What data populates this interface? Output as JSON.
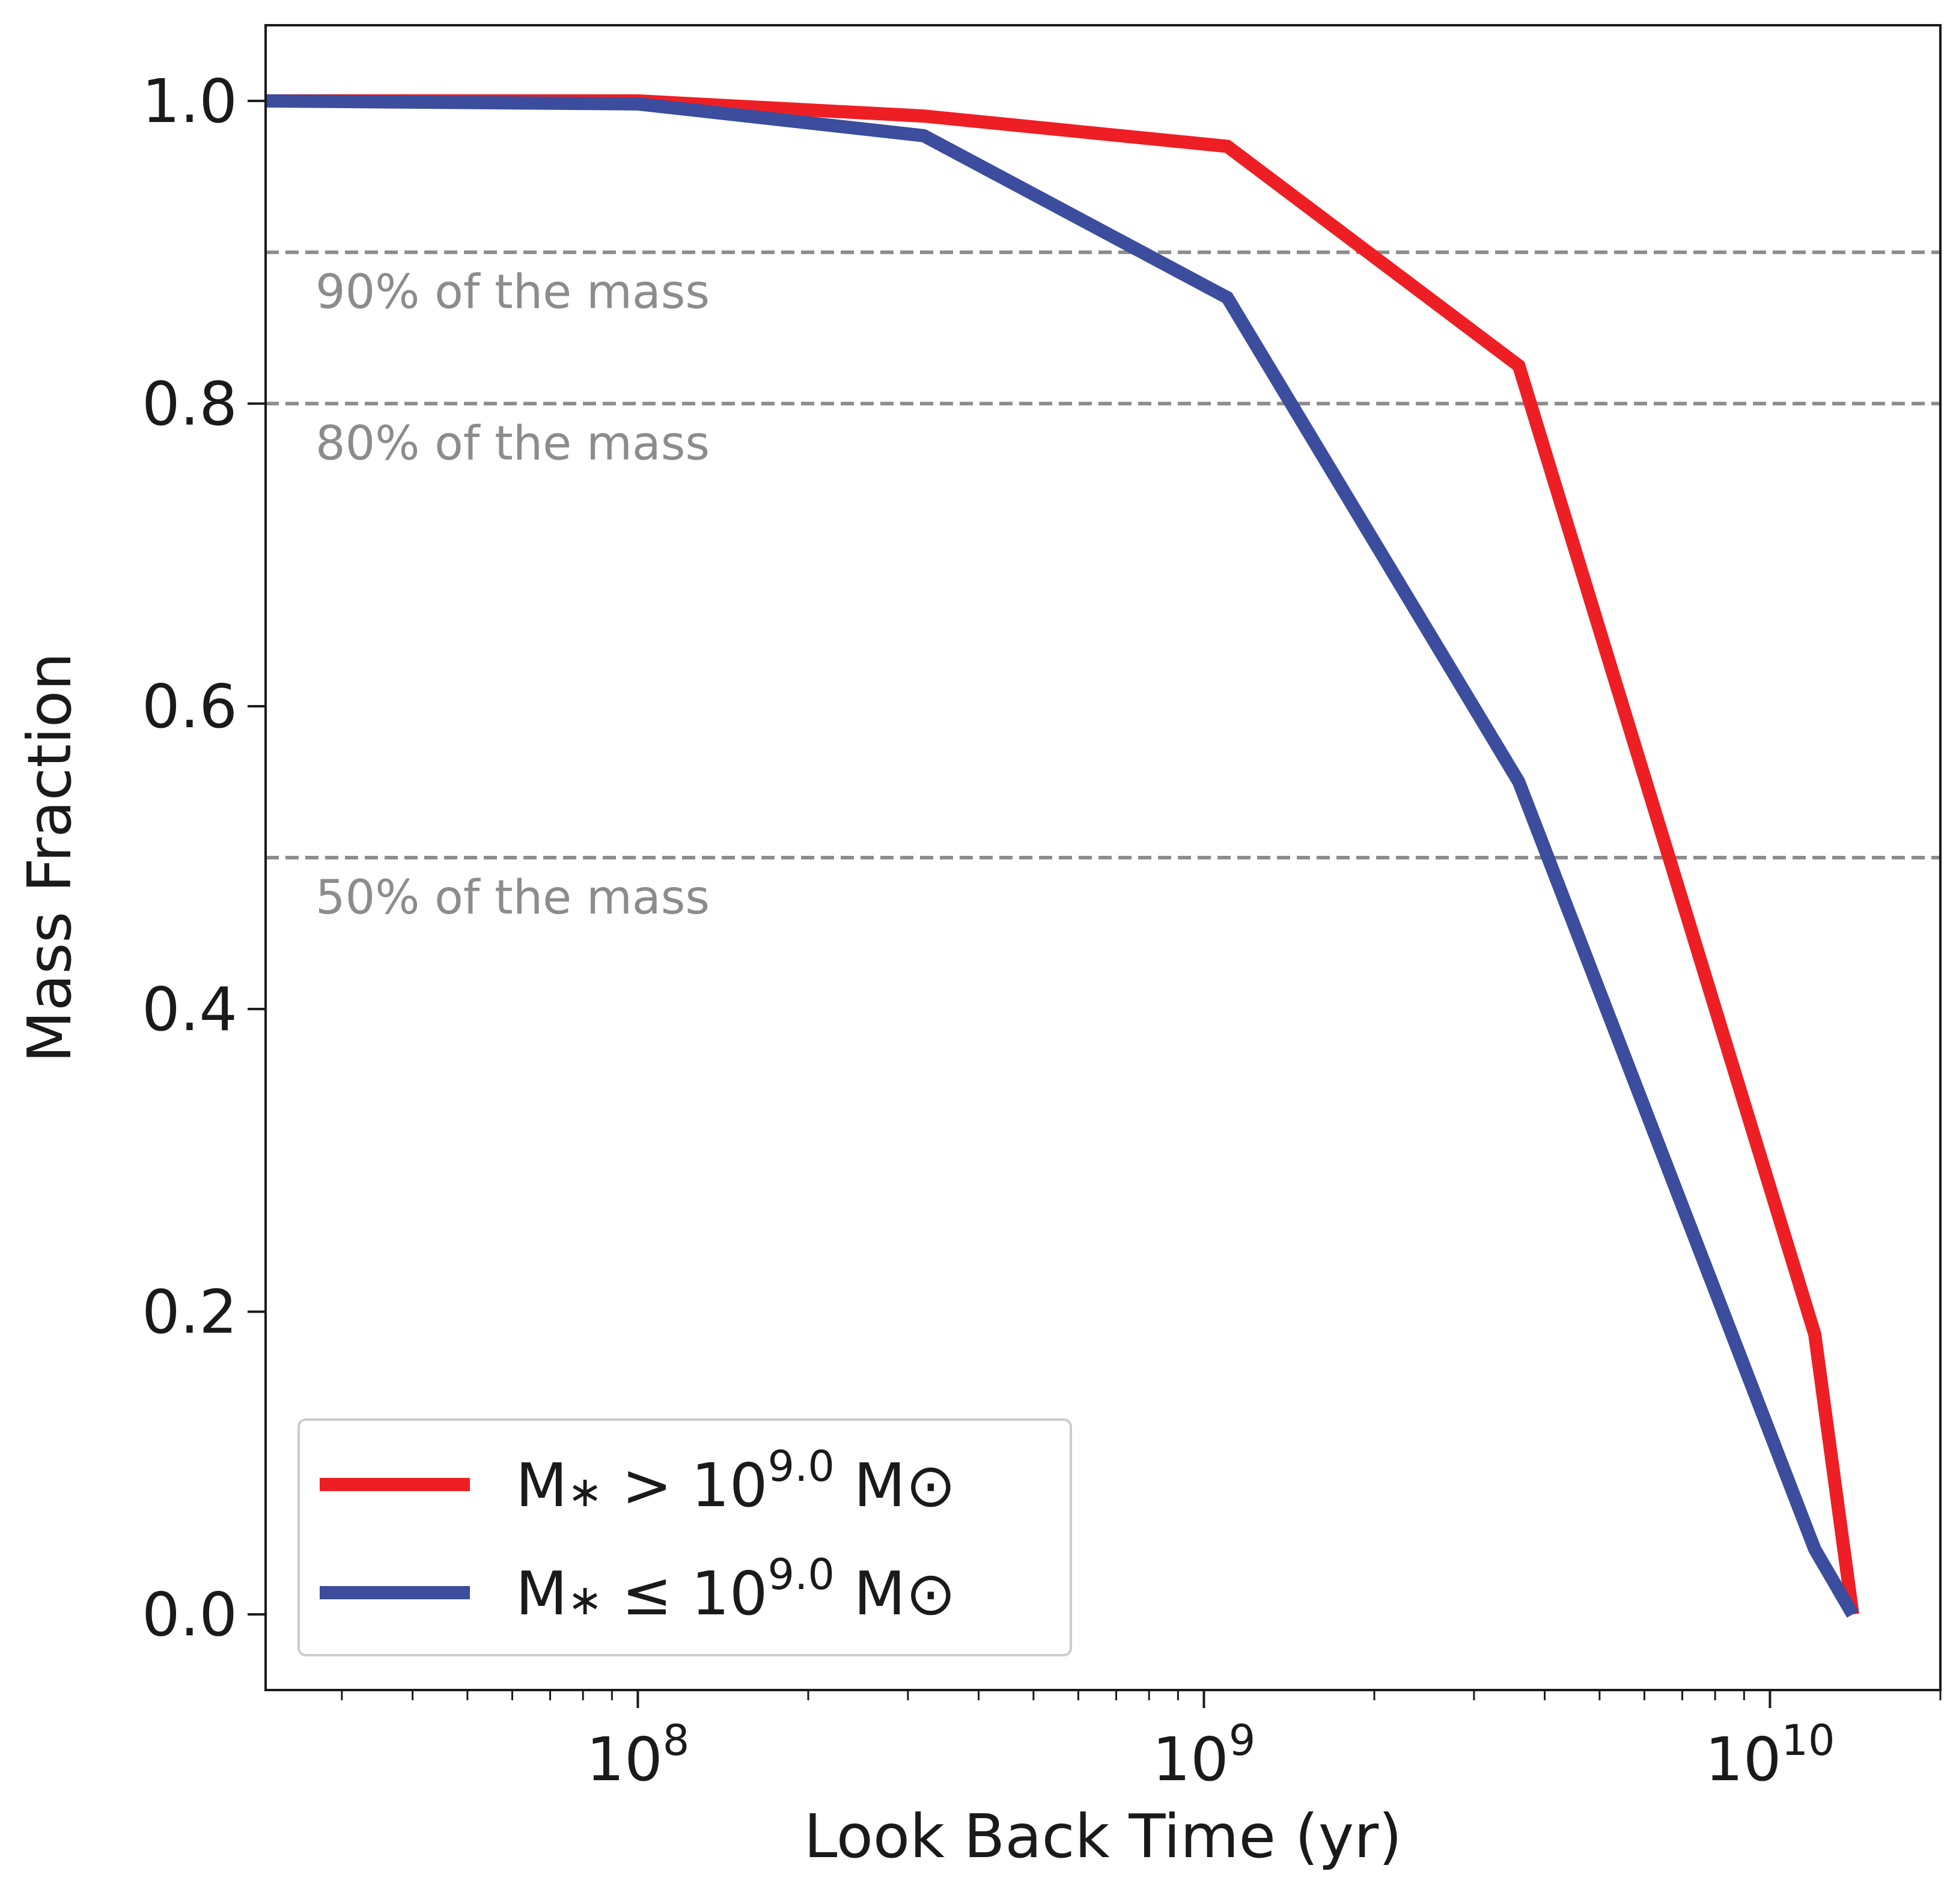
{
  "chart_data": {
    "type": "line",
    "title": "",
    "xlabel": "Look Back Time (yr)",
    "ylabel": "Mass Fraction",
    "xscale": "log",
    "xlim": [
      22000000,
      20000000000
    ],
    "ylim": [
      -0.05,
      1.05
    ],
    "grid": false,
    "legend_position": "lower-left",
    "x_ticks": [
      {
        "value": 100000000,
        "base": "10",
        "exp": "8"
      },
      {
        "value": 1000000000,
        "base": "10",
        "exp": "9"
      },
      {
        "value": 10000000000,
        "base": "10",
        "exp": "10"
      }
    ],
    "y_ticks": [
      {
        "value": 0.0,
        "label": "0.0"
      },
      {
        "value": 0.2,
        "label": "0.2"
      },
      {
        "value": 0.4,
        "label": "0.4"
      },
      {
        "value": 0.6,
        "label": "0.6"
      },
      {
        "value": 0.8,
        "label": "0.8"
      },
      {
        "value": 1.0,
        "label": "1.0"
      }
    ],
    "reference_lines": [
      {
        "y": 0.9,
        "label": "90% of the mass"
      },
      {
        "y": 0.8,
        "label": "80% of the mass"
      },
      {
        "y": 0.5,
        "label": "50% of the mass"
      }
    ],
    "series": [
      {
        "name": "M* > 10^9.0 M⊙",
        "legend_main": "M",
        "legend_sub": "∗",
        "legend_rel": "> 10",
        "legend_exp": "9.0",
        "legend_unit": "M⊙",
        "color": "#ee1f24",
        "x": [
          22000000,
          100000000,
          320000000,
          1100000000,
          3600000000,
          12000000000,
          14000000000
        ],
        "values": [
          1.0,
          1.0,
          0.99,
          0.97,
          0.825,
          0.185,
          0.0
        ]
      },
      {
        "name": "M* ≤ 10^9.0 M⊙",
        "legend_main": "M",
        "legend_sub": "∗",
        "legend_rel": "≤ 10",
        "legend_exp": "9.0",
        "legend_unit": "M⊙",
        "color": "#3b4d9c",
        "x": [
          22000000,
          100000000,
          320000000,
          1100000000,
          3600000000,
          12000000000,
          14000000000
        ],
        "values": [
          1.0,
          0.998,
          0.977,
          0.87,
          0.55,
          0.043,
          0.0
        ]
      }
    ],
    "colors": {
      "axes": "#1a1a1a",
      "reference": "#8c8c8c",
      "legend_border": "#cccccc"
    }
  }
}
